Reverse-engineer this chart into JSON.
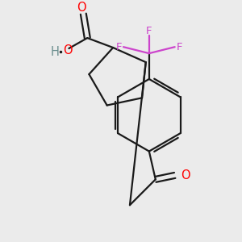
{
  "bg_color": "#ebebeb",
  "bond_color": "#1a1a1a",
  "oxygen_color": "#ff0000",
  "fluorine_color": "#cc44cc",
  "hydrogen_color": "#6b8e8e",
  "line_width": 1.6,
  "font_size": 9.5,
  "fig_width": 3.0,
  "fig_height": 3.0,
  "dpi": 100,
  "xlim": [
    0,
    300
  ],
  "ylim": [
    0,
    300
  ]
}
